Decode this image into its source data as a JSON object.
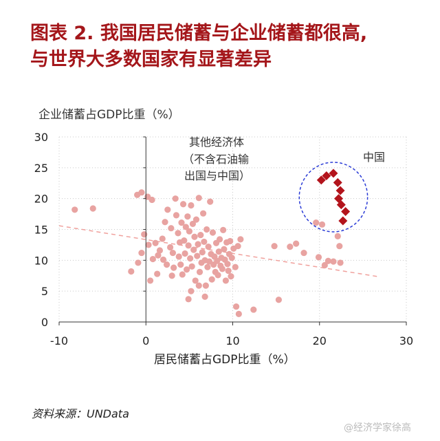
{
  "page": {
    "title_line1": "图表 2.   我国居民储蓄与企业储蓄都很高,",
    "title_line2": "与世界大多数国家有显著差异",
    "source": "资料来源：UNData",
    "watermark": "@经济学家徐高"
  },
  "colors": {
    "title": "#a4161a",
    "others": "#e8a3a1",
    "china": "#b3141c",
    "trend": "#f0a09c",
    "circle": "#2a3bd6",
    "grid": "#c8c8c8"
  },
  "chart_data": {
    "type": "scatter",
    "title": "",
    "xlabel": "居民储蓄占GDP比重（%）",
    "ylabel": "企业储蓄占GDP比重（%）",
    "xlim": [
      -10,
      30
    ],
    "ylim": [
      0,
      30
    ],
    "xticks": [
      -10,
      0,
      10,
      20,
      30
    ],
    "yticks": [
      0,
      5,
      10,
      15,
      20,
      25,
      30
    ],
    "xtick_labels": [
      "-10",
      "0",
      "10",
      "20",
      "30"
    ],
    "ytick_labels": [
      "0",
      "5",
      "10",
      "15",
      "20",
      "25",
      "30"
    ],
    "grid": true,
    "annotations": {
      "others_line1": "其他经济体",
      "others_line2": "（不含石油输",
      "others_line3": "出国与中国）",
      "china": "中国"
    },
    "trendline": {
      "x": [
        -10,
        27
      ],
      "y": [
        15.6,
        7.3
      ]
    },
    "series": [
      {
        "key": "others",
        "marker": "circle",
        "points": [
          [
            -8.2,
            18.2
          ],
          [
            -6.1,
            18.4
          ],
          [
            -1.7,
            8.2
          ],
          [
            -1.0,
            20.6
          ],
          [
            -0.5,
            21.0
          ],
          [
            0.2,
            20.3
          ],
          [
            0.7,
            19.8
          ],
          [
            -0.9,
            9.6
          ],
          [
            -0.5,
            11.2
          ],
          [
            0.3,
            12.5
          ],
          [
            0.8,
            10.2
          ],
          [
            0.5,
            6.7
          ],
          [
            -0.2,
            14.2
          ],
          [
            1.1,
            12.8
          ],
          [
            1.3,
            7.8
          ],
          [
            1.6,
            11.6
          ],
          [
            1.9,
            13.5
          ],
          [
            2.0,
            10.1
          ],
          [
            2.2,
            16.2
          ],
          [
            2.5,
            18.2
          ],
          [
            2.4,
            9.3
          ],
          [
            2.8,
            12.1
          ],
          [
            2.9,
            15.2
          ],
          [
            3.1,
            11.2
          ],
          [
            3.2,
            8.8
          ],
          [
            3.4,
            20.0
          ],
          [
            3.5,
            17.3
          ],
          [
            3.7,
            14.4
          ],
          [
            3.8,
            10.6
          ],
          [
            3.9,
            12.9
          ],
          [
            4.0,
            9.3
          ],
          [
            4.1,
            16.1
          ],
          [
            4.2,
            7.7
          ],
          [
            4.3,
            19.1
          ],
          [
            4.4,
            13.2
          ],
          [
            4.5,
            11.1
          ],
          [
            4.6,
            15.4
          ],
          [
            4.7,
            8.5
          ],
          [
            4.8,
            17.1
          ],
          [
            4.9,
            12.4
          ],
          [
            5.0,
            14.7
          ],
          [
            5.1,
            10.3
          ],
          [
            5.2,
            18.9
          ],
          [
            5.3,
            9.0
          ],
          [
            5.4,
            15.9
          ],
          [
            5.5,
            11.7
          ],
          [
            5.6,
            13.8
          ],
          [
            5.7,
            6.7
          ],
          [
            5.8,
            16.6
          ],
          [
            5.9,
            10.7
          ],
          [
            6.0,
            12.6
          ],
          [
            6.1,
            20.1
          ],
          [
            6.2,
            8.1
          ],
          [
            6.3,
            14.1
          ],
          [
            6.4,
            9.6
          ],
          [
            6.5,
            11.3
          ],
          [
            6.6,
            17.6
          ],
          [
            6.7,
            13.0
          ],
          [
            6.8,
            10.0
          ],
          [
            6.9,
            5.9
          ],
          [
            7.0,
            15.0
          ],
          [
            7.1,
            8.9
          ],
          [
            7.2,
            12.2
          ],
          [
            7.3,
            9.8
          ],
          [
            7.4,
            19.5
          ],
          [
            7.5,
            11.0
          ],
          [
            7.6,
            6.9
          ],
          [
            7.7,
            14.5
          ],
          [
            7.8,
            9.3
          ],
          [
            7.9,
            10.6
          ],
          [
            8.0,
            8.1
          ],
          [
            8.1,
            12.8
          ],
          [
            8.2,
            9.9
          ],
          [
            8.3,
            7.6
          ],
          [
            8.4,
            11.4
          ],
          [
            8.5,
            13.4
          ],
          [
            8.6,
            9.1
          ],
          [
            8.7,
            10.4
          ],
          [
            8.8,
            8.6
          ],
          [
            8.9,
            14.9
          ],
          [
            9.0,
            11.8
          ],
          [
            9.1,
            10.1
          ],
          [
            9.2,
            6.7
          ],
          [
            9.3,
            12.9
          ],
          [
            9.4,
            9.4
          ],
          [
            9.5,
            8.3
          ],
          [
            9.6,
            11.0
          ],
          [
            9.7,
            13.1
          ],
          [
            9.8,
            7.4
          ],
          [
            9.9,
            10.4
          ],
          [
            10.1,
            11.9
          ],
          [
            10.3,
            8.9
          ],
          [
            10.6,
            12.3
          ],
          [
            10.9,
            13.4
          ],
          [
            10.4,
            2.5
          ],
          [
            10.7,
            1.3
          ],
          [
            12.4,
            2.0
          ],
          [
            15.3,
            3.6
          ],
          [
            14.8,
            12.3
          ],
          [
            16.6,
            12.2
          ],
          [
            17.3,
            12.7
          ],
          [
            18.2,
            11.2
          ],
          [
            19.9,
            10.5
          ],
          [
            19.6,
            16.1
          ],
          [
            20.3,
            15.8
          ],
          [
            20.6,
            9.2
          ],
          [
            21.0,
            9.9
          ],
          [
            21.6,
            9.8
          ],
          [
            22.4,
            9.6
          ],
          [
            22.1,
            13.9
          ],
          [
            22.3,
            12.3
          ],
          [
            4.9,
            3.7
          ],
          [
            5.2,
            5.0
          ],
          [
            6.8,
            4.1
          ],
          [
            1.4,
            10.8
          ],
          [
            3.0,
            7.5
          ],
          [
            6.1,
            5.9
          ]
        ]
      },
      {
        "key": "china",
        "marker": "diamond",
        "points": [
          [
            20.2,
            23.0
          ],
          [
            20.8,
            23.7
          ],
          [
            21.6,
            24.1
          ],
          [
            22.1,
            22.6
          ],
          [
            22.4,
            21.3
          ],
          [
            22.2,
            20.0
          ],
          [
            22.5,
            19.0
          ],
          [
            23.0,
            17.9
          ],
          [
            22.7,
            16.4
          ]
        ]
      }
    ]
  }
}
